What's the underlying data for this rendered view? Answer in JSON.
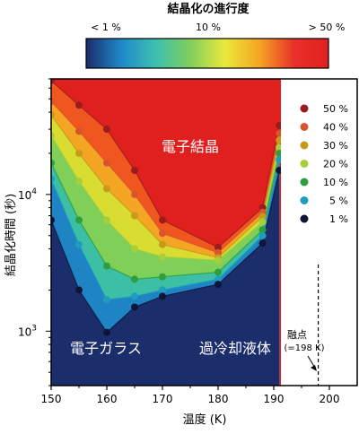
{
  "colorbar": {
    "title": "結晶化の進行度",
    "label_low": "< 1 %",
    "label_mid": "10 %",
    "label_high": "> 50 %",
    "colors": [
      "#1b2d6b",
      "#1e88c8",
      "#3cc0b0",
      "#7fce5c",
      "#e9e93c",
      "#f5a623",
      "#e8312a",
      "#e0201f"
    ]
  },
  "chart_data": {
    "type": "line",
    "xlabel": "温度 (K)",
    "ylabel": "結晶化時間 (秒)",
    "x_ticks": [
      150,
      160,
      170,
      180,
      190,
      200
    ],
    "y_ticks": [
      {
        "value": 1000,
        "label": "10",
        "exp": "3"
      },
      {
        "value": 10000,
        "label": "10",
        "exp": "4"
      }
    ],
    "xlim": [
      150,
      205
    ],
    "ylim": [
      400,
      70000
    ],
    "yscale": "log",
    "region_labels": {
      "crystal": "電子結晶",
      "glass": "電子ガラス",
      "liquid": "過冷却液体"
    },
    "melting_point": {
      "x": 198,
      "label_line1": "融点",
      "label_line2": "(=198 K)"
    },
    "series": [
      {
        "name": "50 %",
        "color": "#9b1c1c",
        "x": [
          150,
          155,
          160,
          165,
          170,
          180,
          188,
          191
        ],
        "y": [
          68000,
          45000,
          30000,
          15000,
          6500,
          4100,
          8000,
          32000
        ]
      },
      {
        "name": "40 %",
        "color": "#d9542a",
        "x": [
          150,
          155,
          160,
          165,
          170,
          180,
          188,
          191
        ],
        "y": [
          48000,
          29000,
          17000,
          10000,
          5200,
          3750,
          7400,
          28000
        ]
      },
      {
        "name": "30 %",
        "color": "#c89a1a",
        "x": [
          150,
          155,
          160,
          165,
          170,
          180,
          188,
          191
        ],
        "y": [
          38000,
          20000,
          11000,
          7000,
          4300,
          3450,
          6900,
          25000
        ]
      },
      {
        "name": "20 %",
        "color": "#a6cf3a",
        "x": [
          150,
          155,
          160,
          165,
          170,
          180,
          188,
          191
        ],
        "y": [
          27000,
          12500,
          6500,
          4000,
          3500,
          3300,
          6300,
          22000
        ]
      },
      {
        "name": "10 %",
        "color": "#2e9e3e",
        "x": [
          150,
          155,
          160,
          165,
          170,
          180,
          188,
          191
        ],
        "y": [
          17000,
          6500,
          3000,
          2400,
          2500,
          2700,
          5500,
          20000
        ]
      },
      {
        "name": "5 %",
        "color": "#1f9dbf",
        "x": [
          150,
          155,
          160,
          165,
          170,
          180,
          188,
          191
        ],
        "y": [
          13000,
          4300,
          1700,
          1800,
          2000,
          2400,
          5000,
          18000
        ]
      },
      {
        "name": "1 %",
        "color": "#0e1638",
        "x": [
          150,
          155,
          160,
          165,
          170,
          180,
          188,
          191
        ],
        "y": [
          6500,
          2000,
          980,
          1500,
          1800,
          2200,
          4400,
          15000
        ]
      }
    ]
  }
}
